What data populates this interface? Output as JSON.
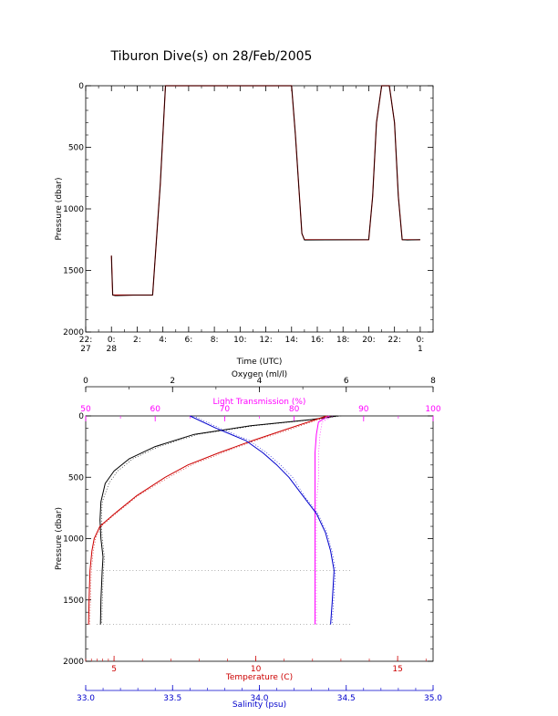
{
  "title": "Tiburon Dive(s) on 28/Feb/2005",
  "colors": {
    "axis": "#000000",
    "oxygen": "#000000",
    "light_transmission": "#ff00ff",
    "temperature": "#cc0000",
    "salinity": "#0000cc"
  },
  "chart_data": [
    {
      "type": "line",
      "title": "Tiburon Dive(s) on 28/Feb/2005",
      "xlabel": "Time (UTC)",
      "ylabel": "Pressure (dbar)",
      "xlim": [
        22,
        49
      ],
      "ylim": [
        2000,
        0
      ],
      "y_reversed": true,
      "grid": false,
      "x_ticks": [
        {
          "x": 22,
          "line1": "22:",
          "line2": "27"
        },
        {
          "x": 24,
          "line1": "0:",
          "line2": "28"
        },
        {
          "x": 26,
          "line1": "2:",
          "line2": ""
        },
        {
          "x": 28,
          "line1": "4:",
          "line2": ""
        },
        {
          "x": 30,
          "line1": "6:",
          "line2": ""
        },
        {
          "x": 32,
          "line1": "8:",
          "line2": ""
        },
        {
          "x": 34,
          "line1": "10:",
          "line2": ""
        },
        {
          "x": 36,
          "line1": "12:",
          "line2": ""
        },
        {
          "x": 38,
          "line1": "14:",
          "line2": ""
        },
        {
          "x": 40,
          "line1": "16:",
          "line2": ""
        },
        {
          "x": 42,
          "line1": "18:",
          "line2": ""
        },
        {
          "x": 44,
          "line1": "20:",
          "line2": ""
        },
        {
          "x": 46,
          "line1": "22:",
          "line2": ""
        },
        {
          "x": 48,
          "line1": "0:",
          "line2": "1"
        }
      ],
      "y_ticks": [
        "0",
        "500",
        "1000",
        "1500",
        "2000"
      ],
      "series": [
        {
          "color": "#cc0000",
          "x": [
            24.0,
            24.1,
            24.3,
            26.0,
            27.2,
            27.8,
            28.2,
            38.0,
            38.3,
            38.8,
            39.0,
            44.0,
            44.3,
            44.6,
            45.0,
            45.3,
            45.6,
            46.0,
            46.3,
            46.6,
            47.0,
            48.0
          ],
          "y": [
            1380,
            1700,
            1700,
            1700,
            1700,
            800,
            0,
            0,
            400,
            1200,
            1250,
            1250,
            900,
            300,
            0,
            0,
            0,
            300,
            900,
            1250,
            1250,
            1250
          ]
        },
        {
          "color": "#000000",
          "x": [
            24.0,
            24.1,
            24.3,
            26.0,
            27.2,
            27.8,
            28.2,
            38.0,
            38.3,
            38.8,
            39.0,
            44.0,
            44.3,
            44.6,
            45.0,
            45.3,
            45.6,
            46.0,
            46.3,
            46.6,
            47.0,
            48.0
          ],
          "y": [
            1380,
            1700,
            1705,
            1700,
            1700,
            800,
            0,
            0,
            400,
            1200,
            1253,
            1250,
            900,
            300,
            0,
            0,
            0,
            300,
            900,
            1250,
            1253,
            1250
          ]
        }
      ]
    },
    {
      "type": "scatter",
      "ylabel": "Pressure (dbar)",
      "ylim": [
        2000,
        0
      ],
      "y_reversed": true,
      "y_ticks": [
        "0",
        "500",
        "1000",
        "1500",
        "2000"
      ],
      "grid": false,
      "axes": [
        {
          "key": "oxygen",
          "label": "Oxygen (ml/l)",
          "position": "top",
          "color": "#000000",
          "lim": [
            0,
            8
          ],
          "ticks": [
            "0",
            "2",
            "4",
            "6",
            "8"
          ],
          "values": [
            0,
            2,
            4,
            6,
            8
          ]
        },
        {
          "key": "light_transmission",
          "label": "Light Transmission (%)",
          "position": "top",
          "color": "#ff00ff",
          "lim": [
            50,
            100
          ],
          "ticks": [
            "50",
            "60",
            "70",
            "80",
            "90",
            "100"
          ],
          "values": [
            50,
            60,
            70,
            80,
            90,
            100
          ]
        },
        {
          "key": "temperature",
          "label": "Temperature (C)",
          "position": "bottom",
          "color": "#cc0000",
          "lim": [
            4,
            16.25
          ],
          "ticks": [
            "5",
            "10",
            "15"
          ],
          "values": [
            5,
            10,
            15
          ]
        },
        {
          "key": "salinity",
          "label": "Salinity (psu)",
          "position": "bottom",
          "color": "#0000cc",
          "lim": [
            33,
            35
          ],
          "ticks": [
            "33.0",
            "33.5",
            "34.0",
            "34.5",
            "35.0"
          ],
          "values": [
            33.0,
            33.5,
            34.0,
            34.5,
            35.0
          ]
        }
      ],
      "series": [
        {
          "axis": "oxygen",
          "color": "#000000",
          "x": [
            5.8,
            5.2,
            3.8,
            2.5,
            1.6,
            1.0,
            0.65,
            0.45,
            0.35,
            0.33,
            0.35,
            0.4,
            0.38,
            0.35,
            0.34
          ],
          "y": [
            0,
            30,
            80,
            150,
            250,
            350,
            450,
            550,
            700,
            850,
            1000,
            1150,
            1260,
            1500,
            1700
          ]
        },
        {
          "axis": "light_transmission",
          "color": "#ff00ff",
          "x": [
            85.0,
            83.5,
            83.2,
            83.0,
            83.0,
            83.0,
            83.0,
            83.0,
            83.0,
            83.0,
            83.0
          ],
          "y": [
            0,
            50,
            150,
            300,
            500,
            700,
            900,
            1100,
            1260,
            1500,
            1700
          ]
        },
        {
          "axis": "temperature",
          "color": "#cc0000",
          "x": [
            12.5,
            11.2,
            9.9,
            8.7,
            7.6,
            6.8,
            5.8,
            5.0,
            4.5,
            4.3,
            4.22,
            4.15,
            4.12,
            4.1
          ],
          "y": [
            0,
            100,
            200,
            300,
            400,
            500,
            650,
            800,
            900,
            1000,
            1100,
            1260,
            1500,
            1700
          ]
        },
        {
          "axis": "salinity",
          "color": "#0000cc",
          "x": [
            33.6,
            33.75,
            33.92,
            34.02,
            34.1,
            34.17,
            34.25,
            34.33,
            34.38,
            34.41,
            34.43,
            34.42,
            34.41
          ],
          "y": [
            0,
            100,
            200,
            300,
            400,
            500,
            650,
            800,
            950,
            1100,
            1260,
            1500,
            1700
          ]
        }
      ]
    }
  ]
}
